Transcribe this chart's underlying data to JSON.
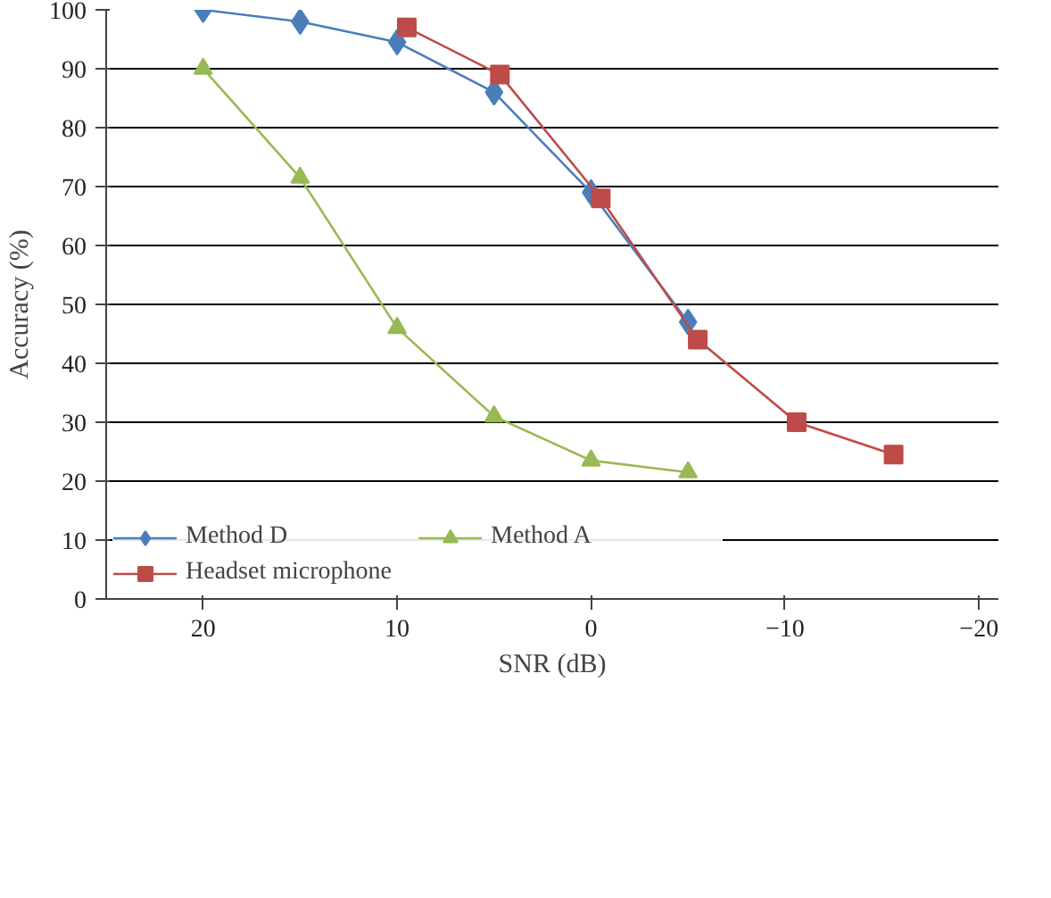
{
  "chart_data": {
    "type": "line",
    "xlabel": "SNR (dB)",
    "ylabel": "Accuracy (%)",
    "xlim": [
      25,
      -21
    ],
    "xticks": [
      20,
      10,
      0,
      {
        "value": -10,
        "label": "−10"
      },
      {
        "value": -20,
        "label": "−20"
      }
    ],
    "ylim": [
      0,
      100
    ],
    "yticks": [
      0,
      10,
      20,
      30,
      40,
      50,
      60,
      70,
      80,
      90,
      100
    ],
    "grid": "y",
    "legend": "bottom left",
    "series": [
      {
        "name": "Method D",
        "color": "#4a7ebb",
        "marker": "diamond",
        "x": [
          20,
          15,
          10,
          5,
          0,
          -5
        ],
        "values": [
          100,
          98,
          94.5,
          86,
          69,
          47
        ]
      },
      {
        "name": "Headset microphone",
        "color": "#be4b48",
        "marker": "square",
        "x": [
          9.5,
          4.7,
          -0.5,
          -5.5,
          -10.6,
          -15.6
        ],
        "values": [
          97,
          89,
          68,
          44,
          30,
          24.5
        ]
      },
      {
        "name": "Method A",
        "color": "#98b954",
        "marker": "triangle",
        "x": [
          20,
          15,
          10,
          5,
          0,
          -5
        ],
        "values": [
          90,
          71.5,
          46,
          31,
          23.5,
          21.5
        ]
      }
    ]
  }
}
